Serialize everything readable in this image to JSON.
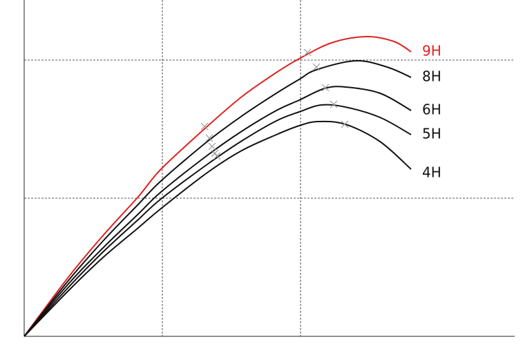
{
  "chart_data": {
    "type": "line",
    "xlim": [
      0,
      3.55
    ],
    "ylim": [
      0,
      2.435
    ],
    "xticks": [
      1,
      2
    ],
    "yticks": [
      1,
      2
    ],
    "grid": true,
    "series": [
      {
        "name": "9H",
        "color": "#e0201e",
        "x": [
          0,
          0.325,
          0.575,
          0.825,
          0.99,
          1.325,
          1.575,
          1.825,
          1.99,
          2.225,
          2.475,
          2.675,
          2.8
        ],
        "values": [
          0,
          0.435,
          0.735,
          1.01,
          1.21,
          1.52,
          1.735,
          1.91,
          2.01,
          2.125,
          2.17,
          2.135,
          2.06
        ],
        "markers": {
          "x": [
            1.305,
            2.05
          ],
          "y": [
            1.52,
            2.055
          ]
        }
      },
      {
        "name": "8H",
        "color": "#111111",
        "x": [
          0,
          0.325,
          0.575,
          0.825,
          0.99,
          1.325,
          1.575,
          1.825,
          1.99,
          2.115,
          2.4,
          2.625,
          2.8
        ],
        "values": [
          0,
          0.41,
          0.695,
          0.955,
          1.125,
          1.41,
          1.595,
          1.76,
          1.86,
          1.93,
          1.995,
          1.95,
          1.875
        ],
        "markers": {
          "x": [
            1.34,
            2.115
          ],
          "y": [
            1.435,
            1.95
          ]
        }
      },
      {
        "name": "6H",
        "color": "#111111",
        "x": [
          0,
          0.325,
          0.575,
          0.825,
          0.99,
          1.325,
          1.575,
          1.825,
          1.99,
          2.175,
          2.325,
          2.575,
          2.8
        ],
        "values": [
          0,
          0.385,
          0.645,
          0.885,
          1.045,
          1.31,
          1.485,
          1.635,
          1.71,
          1.795,
          1.805,
          1.76,
          1.635
        ],
        "markers": {
          "x": [
            1.36,
            2.18
          ],
          "y": [
            1.375,
            1.8
          ]
        }
      },
      {
        "name": "5H",
        "color": "#111111",
        "x": [
          0,
          0.325,
          0.575,
          0.825,
          0.99,
          1.325,
          1.575,
          1.825,
          1.99,
          2.15,
          2.325,
          2.575,
          2.8
        ],
        "values": [
          0,
          0.36,
          0.615,
          0.845,
          0.995,
          1.245,
          1.415,
          1.56,
          1.625,
          1.675,
          1.66,
          1.585,
          1.46
        ],
        "markers": {
          "x": [
            1.38,
            2.24
          ],
          "y": [
            1.325,
            1.68
          ]
        }
      },
      {
        "name": "4H",
        "color": "#111111",
        "x": [
          0,
          0.325,
          0.575,
          0.825,
          0.99,
          1.325,
          1.575,
          1.825,
          1.99,
          2.125,
          2.325,
          2.575,
          2.8
        ],
        "values": [
          0,
          0.335,
          0.575,
          0.785,
          0.925,
          1.185,
          1.345,
          1.46,
          1.525,
          1.555,
          1.535,
          1.41,
          1.21
        ],
        "markers": {
          "x": [
            1.395,
            2.32
          ],
          "y": [
            1.305,
            1.535
          ]
        }
      }
    ]
  }
}
